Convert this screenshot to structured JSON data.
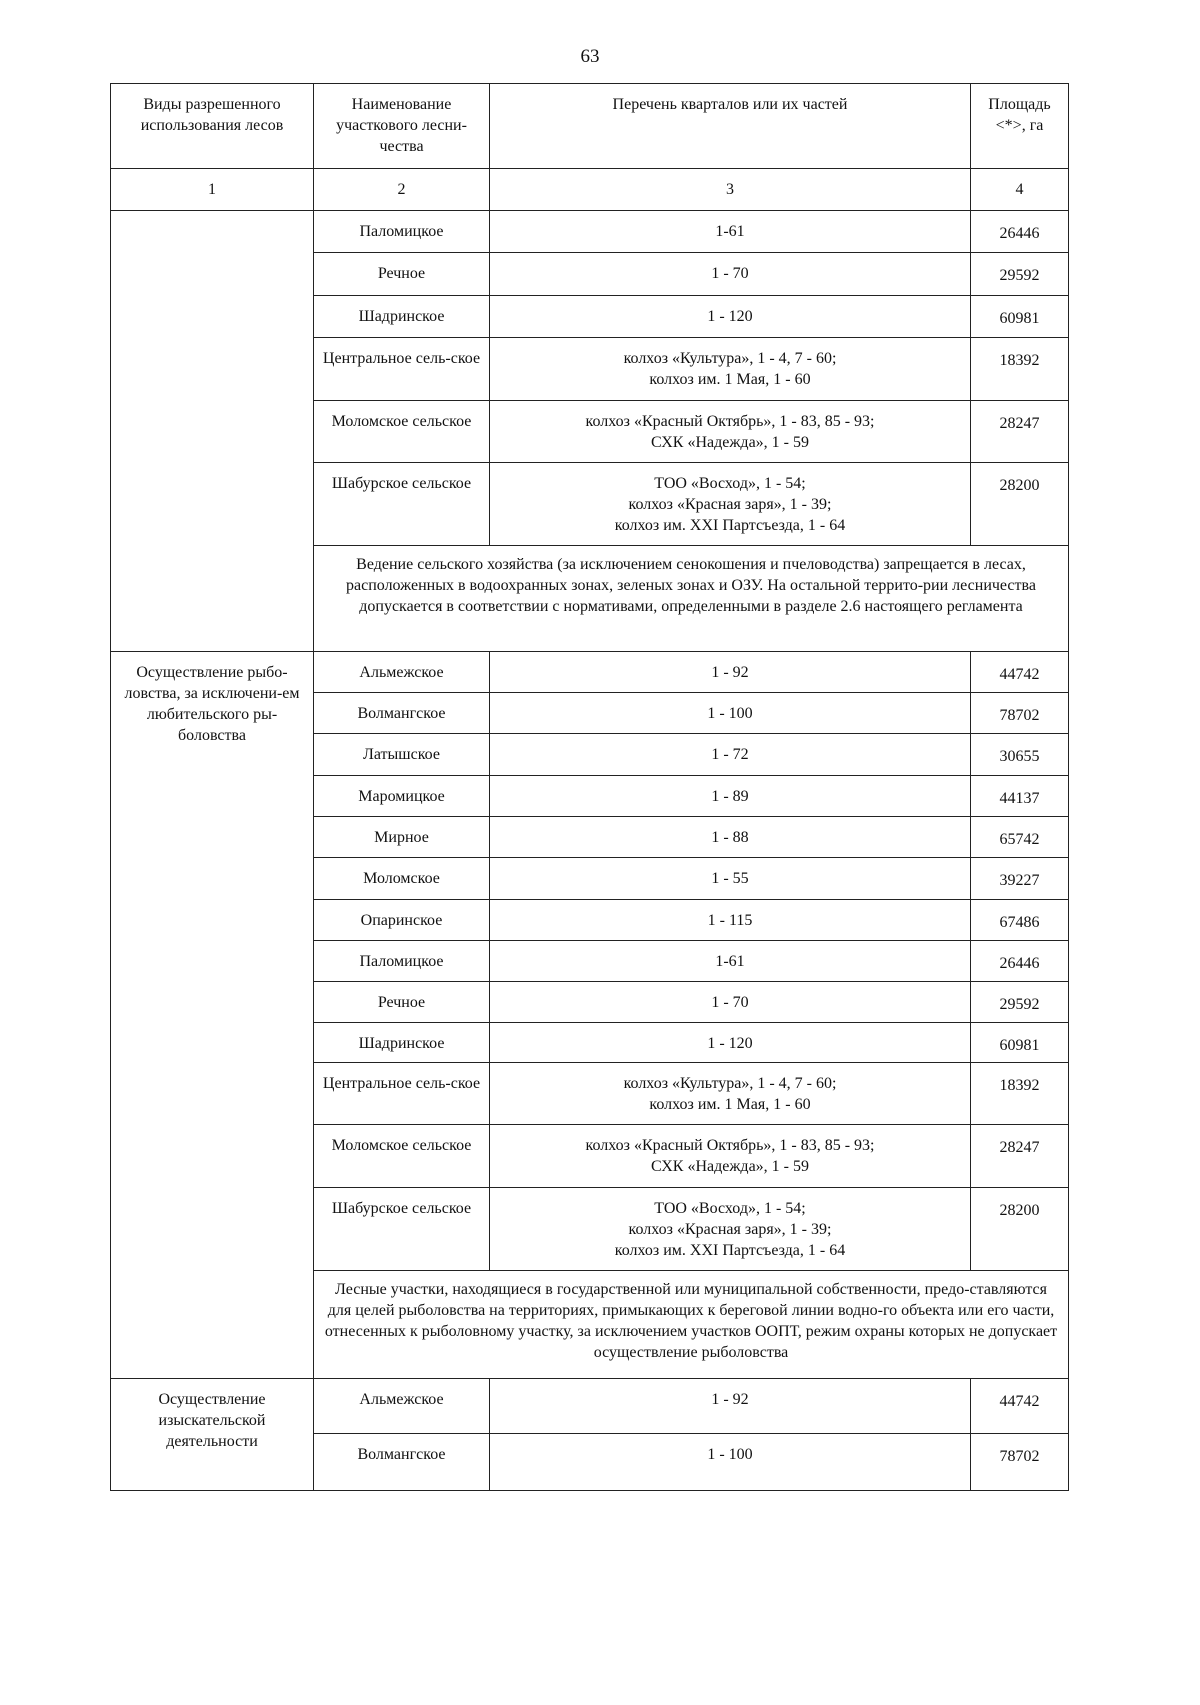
{
  "page_number": "63",
  "header": {
    "col1": "Виды разрешенного использования лесов",
    "col2": "Наименование участкового лесни-чества",
    "col3": "Перечень кварталов или их частей",
    "col4": "Площадь <*>, га",
    "numbers": [
      "1",
      "2",
      "3",
      "4"
    ]
  },
  "groups": [
    {
      "label": "",
      "rows": [
        {
          "name": "Паломицкое",
          "quarters": "1-61",
          "area": "26446"
        },
        {
          "name": "Речное",
          "quarters": "1 - 70",
          "area": "29592"
        },
        {
          "name": "Шадринское",
          "quarters": "1 - 120",
          "area": "60981"
        },
        {
          "name": "Центральное сель-ское",
          "quarters": "колхоз «Культура», 1 - 4, 7 - 60;\nколхоз им. 1 Мая, 1 - 60",
          "area": "18392"
        },
        {
          "name": "Моломское сельское",
          "quarters": "колхоз «Красный Октябрь», 1 - 83, 85 - 93;\nСХК «Надежда», 1 - 59",
          "area": "28247"
        },
        {
          "name": "Шабурское сельское",
          "quarters": "ТОО «Восход», 1 - 54;\nколхоз «Красная заря», 1 - 39;\nколхоз им. XXI Партсъезда, 1 - 64",
          "area": "28200"
        }
      ],
      "note": "Ведение сельского хозяйства (за исключением сенокошения и пчеловодства) запрещается в лесах, расположенных в водоохранных зонах, зеленых зонах и ОЗУ. На остальной террито-рии лесничества допускается в соответствии с нормативами, определенными в разделе 2.6 настоящего регламента"
    },
    {
      "label": "Осуществление рыбо-ловства, за исключени-ем любительского ры-боловства",
      "rows": [
        {
          "name": "Альмежское",
          "quarters": "1 - 92",
          "area": "44742"
        },
        {
          "name": "Волмангское",
          "quarters": "1 - 100",
          "area": "78702"
        },
        {
          "name": "Латышское",
          "quarters": "1 - 72",
          "area": "30655"
        },
        {
          "name": "Маромицкое",
          "quarters": "1 - 89",
          "area": "44137"
        },
        {
          "name": "Мирное",
          "quarters": "1 - 88",
          "area": "65742"
        },
        {
          "name": "Моломское",
          "quarters": "1 - 55",
          "area": "39227"
        },
        {
          "name": "Опаринское",
          "quarters": "1 - 115",
          "area": "67486"
        },
        {
          "name": "Паломицкое",
          "quarters": "1-61",
          "area": "26446"
        },
        {
          "name": "Речное",
          "quarters": "1 - 70",
          "area": "29592"
        },
        {
          "name": "Шадринское",
          "quarters": "1 - 120",
          "area": "60981"
        },
        {
          "name": "Центральное сель-ское",
          "quarters": "колхоз «Культура», 1 - 4, 7 - 60;\nколхоз им. 1 Мая, 1 - 60",
          "area": "18392"
        },
        {
          "name": "Моломское сельское",
          "quarters": "колхоз «Красный Октябрь», 1 - 83, 85 - 93;\nСХК «Надежда», 1 - 59",
          "area": "28247"
        },
        {
          "name": "Шабурское сельское",
          "quarters": "ТОО «Восход», 1 - 54;\nколхоз «Красная заря», 1 - 39;\nколхоз им. XXI Партсъезда, 1 - 64",
          "area": "28200"
        }
      ],
      "note": "Лесные участки, находящиеся в государственной или муниципальной собственности, предо-ставляются для целей рыболовства на территориях, примыкающих к береговой линии водно-го объекта или его части, отнесенных к рыболовному участку, за исключением участков ООПТ, режим охраны которых не допускает осуществление рыболовства"
    },
    {
      "label": "Осуществление изыскательской деятельности",
      "rows": [
        {
          "name": "Альмежское",
          "quarters": "1 - 92",
          "area": "44742"
        },
        {
          "name": "Волмангское",
          "quarters": "1 - 100",
          "area": "78702"
        }
      ],
      "note": ""
    }
  ]
}
